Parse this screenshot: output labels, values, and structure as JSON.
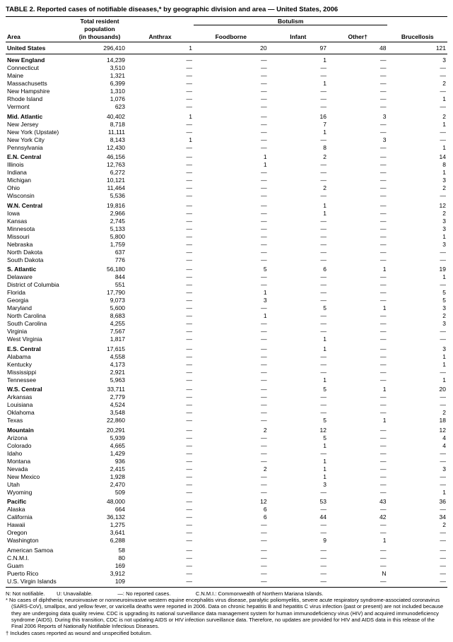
{
  "title": "TABLE 2. Reported cases of notifiable diseases,* by geographic division and area — United States, 2006",
  "columns": {
    "area": "Area",
    "pop_top": "Total resident",
    "pop_mid": "population",
    "pop_bot": "(in  thousands)",
    "anthrax": "Anthrax",
    "botulism": "Botulism",
    "foodborne": "Foodborne",
    "infant": "Infant",
    "other": "Other†",
    "brucellosis": "Brucellosis"
  },
  "dash": "—",
  "groups": [
    {
      "rows": [
        {
          "area": "United States",
          "pop": "296,410",
          "anthrax": "1",
          "food": "20",
          "infant": "97",
          "other": "48",
          "bruc": "121",
          "bold": true
        }
      ],
      "total": true
    },
    {
      "rows": [
        {
          "area": "New England",
          "pop": "14,239",
          "anthrax": "—",
          "food": "—",
          "infant": "1",
          "other": "—",
          "bruc": "3",
          "bold": true
        },
        {
          "area": "Connecticut",
          "pop": "3,510",
          "anthrax": "—",
          "food": "—",
          "infant": "—",
          "other": "—",
          "bruc": "—"
        },
        {
          "area": "Maine",
          "pop": "1,321",
          "anthrax": "—",
          "food": "—",
          "infant": "—",
          "other": "—",
          "bruc": "—"
        },
        {
          "area": "Massachusetts",
          "pop": "6,399",
          "anthrax": "—",
          "food": "—",
          "infant": "1",
          "other": "—",
          "bruc": "2"
        },
        {
          "area": "New Hampshire",
          "pop": "1,310",
          "anthrax": "—",
          "food": "—",
          "infant": "—",
          "other": "—",
          "bruc": "—"
        },
        {
          "area": "Rhode Island",
          "pop": "1,076",
          "anthrax": "—",
          "food": "—",
          "infant": "—",
          "other": "—",
          "bruc": "1"
        },
        {
          "area": "Vermont",
          "pop": "623",
          "anthrax": "—",
          "food": "—",
          "infant": "—",
          "other": "—",
          "bruc": "—"
        }
      ]
    },
    {
      "rows": [
        {
          "area": "Mid. Atlantic",
          "pop": "40,402",
          "anthrax": "1",
          "food": "—",
          "infant": "16",
          "other": "3",
          "bruc": "2",
          "bold": true
        },
        {
          "area": "New Jersey",
          "pop": "8,718",
          "anthrax": "—",
          "food": "—",
          "infant": "7",
          "other": "—",
          "bruc": "1"
        },
        {
          "area": "New York (Upstate)",
          "pop": "11,111",
          "anthrax": "—",
          "food": "—",
          "infant": "1",
          "other": "—",
          "bruc": "—"
        },
        {
          "area": "New York City",
          "pop": "8,143",
          "anthrax": "1",
          "food": "—",
          "infant": "—",
          "other": "3",
          "bruc": "—"
        },
        {
          "area": "Pennsylvania",
          "pop": "12,430",
          "anthrax": "—",
          "food": "—",
          "infant": "8",
          "other": "—",
          "bruc": "1"
        }
      ]
    },
    {
      "rows": [
        {
          "area": "E.N. Central",
          "pop": "46,156",
          "anthrax": "—",
          "food": "1",
          "infant": "2",
          "other": "—",
          "bruc": "14",
          "bold": true
        },
        {
          "area": "Illinois",
          "pop": "12,763",
          "anthrax": "—",
          "food": "1",
          "infant": "—",
          "other": "—",
          "bruc": "8"
        },
        {
          "area": "Indiana",
          "pop": "6,272",
          "anthrax": "—",
          "food": "—",
          "infant": "—",
          "other": "—",
          "bruc": "1"
        },
        {
          "area": "Michigan",
          "pop": "10,121",
          "anthrax": "—",
          "food": "—",
          "infant": "—",
          "other": "—",
          "bruc": "3"
        },
        {
          "area": "Ohio",
          "pop": "11,464",
          "anthrax": "—",
          "food": "—",
          "infant": "2",
          "other": "—",
          "bruc": "2"
        },
        {
          "area": "Wisconsin",
          "pop": "5,536",
          "anthrax": "—",
          "food": "—",
          "infant": "—",
          "other": "—",
          "bruc": "—"
        }
      ]
    },
    {
      "rows": [
        {
          "area": "W.N. Central",
          "pop": "19,816",
          "anthrax": "—",
          "food": "—",
          "infant": "1",
          "other": "—",
          "bruc": "12",
          "bold": true
        },
        {
          "area": "Iowa",
          "pop": "2,966",
          "anthrax": "—",
          "food": "—",
          "infant": "1",
          "other": "—",
          "bruc": "2"
        },
        {
          "area": "Kansas",
          "pop": "2,745",
          "anthrax": "—",
          "food": "—",
          "infant": "—",
          "other": "—",
          "bruc": "3"
        },
        {
          "area": "Minnesota",
          "pop": "5,133",
          "anthrax": "—",
          "food": "—",
          "infant": "—",
          "other": "—",
          "bruc": "3"
        },
        {
          "area": "Missouri",
          "pop": "5,800",
          "anthrax": "—",
          "food": "—",
          "infant": "—",
          "other": "—",
          "bruc": "1"
        },
        {
          "area": "Nebraska",
          "pop": "1,759",
          "anthrax": "—",
          "food": "—",
          "infant": "—",
          "other": "—",
          "bruc": "3"
        },
        {
          "area": "North Dakota",
          "pop": "637",
          "anthrax": "—",
          "food": "—",
          "infant": "—",
          "other": "—",
          "bruc": "—"
        },
        {
          "area": "South Dakota",
          "pop": "776",
          "anthrax": "—",
          "food": "—",
          "infant": "—",
          "other": "—",
          "bruc": "—"
        }
      ]
    },
    {
      "rows": [
        {
          "area": "S. Atlantic",
          "pop": "56,180",
          "anthrax": "—",
          "food": "5",
          "infant": "6",
          "other": "1",
          "bruc": "19",
          "bold": true
        },
        {
          "area": "Delaware",
          "pop": "844",
          "anthrax": "—",
          "food": "—",
          "infant": "—",
          "other": "—",
          "bruc": "1"
        },
        {
          "area": "District of Columbia",
          "pop": "551",
          "anthrax": "—",
          "food": "—",
          "infant": "—",
          "other": "—",
          "bruc": "—"
        },
        {
          "area": "Florida",
          "pop": "17,790",
          "anthrax": "—",
          "food": "1",
          "infant": "—",
          "other": "—",
          "bruc": "5"
        },
        {
          "area": "Georgia",
          "pop": "9,073",
          "anthrax": "—",
          "food": "3",
          "infant": "—",
          "other": "—",
          "bruc": "5"
        },
        {
          "area": "Maryland",
          "pop": "5,600",
          "anthrax": "—",
          "food": "—",
          "infant": "5",
          "other": "1",
          "bruc": "3"
        },
        {
          "area": "North Carolina",
          "pop": "8,683",
          "anthrax": "—",
          "food": "1",
          "infant": "—",
          "other": "—",
          "bruc": "2"
        },
        {
          "area": "South Carolina",
          "pop": "4,255",
          "anthrax": "—",
          "food": "—",
          "infant": "—",
          "other": "—",
          "bruc": "3"
        },
        {
          "area": "Virginia",
          "pop": "7,567",
          "anthrax": "—",
          "food": "—",
          "infant": "—",
          "other": "—",
          "bruc": "—"
        },
        {
          "area": "West Virginia",
          "pop": "1,817",
          "anthrax": "—",
          "food": "—",
          "infant": "1",
          "other": "—",
          "bruc": "—"
        }
      ]
    },
    {
      "rows": [
        {
          "area": "E.S. Central",
          "pop": "17,615",
          "anthrax": "—",
          "food": "—",
          "infant": "1",
          "other": "—",
          "bruc": "3",
          "bold": true
        },
        {
          "area": "Alabama",
          "pop": "4,558",
          "anthrax": "—",
          "food": "—",
          "infant": "—",
          "other": "—",
          "bruc": "1"
        },
        {
          "area": "Kentucky",
          "pop": "4,173",
          "anthrax": "—",
          "food": "—",
          "infant": "—",
          "other": "—",
          "bruc": "1"
        },
        {
          "area": "Mississippi",
          "pop": "2,921",
          "anthrax": "—",
          "food": "—",
          "infant": "—",
          "other": "—",
          "bruc": "—"
        },
        {
          "area": "Tennessee",
          "pop": "5,963",
          "anthrax": "—",
          "food": "—",
          "infant": "1",
          "other": "—",
          "bruc": "1"
        }
      ]
    },
    {
      "rows": [
        {
          "area": "W.S. Central",
          "pop": "33,711",
          "anthrax": "—",
          "food": "—",
          "infant": "5",
          "other": "1",
          "bruc": "20",
          "bold": true
        },
        {
          "area": "Arkansas",
          "pop": "2,779",
          "anthrax": "—",
          "food": "—",
          "infant": "—",
          "other": "—",
          "bruc": "—"
        },
        {
          "area": "Louisiana",
          "pop": "4,524",
          "anthrax": "—",
          "food": "—",
          "infant": "—",
          "other": "—",
          "bruc": "—"
        },
        {
          "area": "Oklahoma",
          "pop": "3,548",
          "anthrax": "—",
          "food": "—",
          "infant": "—",
          "other": "—",
          "bruc": "2"
        },
        {
          "area": "Texas",
          "pop": "22,860",
          "anthrax": "—",
          "food": "—",
          "infant": "5",
          "other": "1",
          "bruc": "18"
        }
      ]
    },
    {
      "rows": [
        {
          "area": "Mountain",
          "pop": "20,291",
          "anthrax": "—",
          "food": "2",
          "infant": "12",
          "other": "—",
          "bruc": "12",
          "bold": true
        },
        {
          "area": "Arizona",
          "pop": "5,939",
          "anthrax": "—",
          "food": "—",
          "infant": "5",
          "other": "—",
          "bruc": "4"
        },
        {
          "area": "Colorado",
          "pop": "4,665",
          "anthrax": "—",
          "food": "—",
          "infant": "1",
          "other": "—",
          "bruc": "4"
        },
        {
          "area": "Idaho",
          "pop": "1,429",
          "anthrax": "—",
          "food": "—",
          "infant": "—",
          "other": "—",
          "bruc": "—"
        },
        {
          "area": "Montana",
          "pop": "936",
          "anthrax": "—",
          "food": "—",
          "infant": "1",
          "other": "—",
          "bruc": "—"
        },
        {
          "area": "Nevada",
          "pop": "2,415",
          "anthrax": "—",
          "food": "2",
          "infant": "1",
          "other": "—",
          "bruc": "3"
        },
        {
          "area": "New Mexico",
          "pop": "1,928",
          "anthrax": "—",
          "food": "—",
          "infant": "1",
          "other": "—",
          "bruc": "—"
        },
        {
          "area": "Utah",
          "pop": "2,470",
          "anthrax": "—",
          "food": "—",
          "infant": "3",
          "other": "—",
          "bruc": "—"
        },
        {
          "area": "Wyoming",
          "pop": "509",
          "anthrax": "—",
          "food": "—",
          "infant": "—",
          "other": "—",
          "bruc": "1"
        }
      ]
    },
    {
      "rows": [
        {
          "area": "Pacific",
          "pop": "48,000",
          "anthrax": "—",
          "food": "12",
          "infant": "53",
          "other": "43",
          "bruc": "36",
          "bold": true
        },
        {
          "area": "Alaska",
          "pop": "664",
          "anthrax": "—",
          "food": "6",
          "infant": "—",
          "other": "—",
          "bruc": "—"
        },
        {
          "area": "California",
          "pop": "36,132",
          "anthrax": "—",
          "food": "6",
          "infant": "44",
          "other": "42",
          "bruc": "34"
        },
        {
          "area": "Hawaii",
          "pop": "1,275",
          "anthrax": "—",
          "food": "—",
          "infant": "—",
          "other": "—",
          "bruc": "2"
        },
        {
          "area": "Oregon",
          "pop": "3,641",
          "anthrax": "—",
          "food": "—",
          "infant": "—",
          "other": "—",
          "bruc": "—"
        },
        {
          "area": "Washington",
          "pop": "6,288",
          "anthrax": "—",
          "food": "—",
          "infant": "9",
          "other": "1",
          "bruc": "—"
        }
      ]
    },
    {
      "rows": [
        {
          "area": "American Samoa",
          "pop": "58",
          "anthrax": "—",
          "food": "—",
          "infant": "—",
          "other": "—",
          "bruc": "—"
        },
        {
          "area": "C.N.M.I.",
          "pop": "80",
          "anthrax": "—",
          "food": "—",
          "infant": "—",
          "other": "—",
          "bruc": "—"
        },
        {
          "area": "Guam",
          "pop": "169",
          "anthrax": "—",
          "food": "—",
          "infant": "—",
          "other": "—",
          "bruc": "—"
        },
        {
          "area": "Puerto Rico",
          "pop": "3,912",
          "anthrax": "—",
          "food": "—",
          "infant": "—",
          "other": "N",
          "bruc": "—"
        },
        {
          "area": "U.S. Virgin Islands",
          "pop": "109",
          "anthrax": "—",
          "food": "—",
          "infant": "—",
          "other": "—",
          "bruc": "—"
        }
      ],
      "total": true
    }
  ],
  "footnotes": {
    "line1": "N: Not notifiable.        U: Unavailable.                 —: No reported cases.                 C.N.M.I.: Commonwealth of Northern Mariana Islands.",
    "note_star": "* No cases of diphtheria; neuroinvasive or nonneuroinvasive western equine encephalitis virus disease, paralytic poliomyelitis, severe acute respiratory syndrome-associated coronavirus (SARS-CoV), smallpox, and yellow fever, or varicella deaths were reported in 2006. Data on chronic hepatitis B and hepatitis C virus infection (past or present) are not included because they are undergoing data quality review. CDC is upgrading its national surveillance data management system for human immunodeficiency virus (HIV) and acquired immunodeficiency syndrome (AIDS). During this transition, CDC is not updating AIDS or HIV infection surveillance data. Therefore, no updates are provided for HIV and AIDS data in this release of the Final 2006 Reports of Nationally Notifiable Infectious Diseases.",
    "note_dagger": "† Includes cases reported as wound and unspecified botulism."
  }
}
